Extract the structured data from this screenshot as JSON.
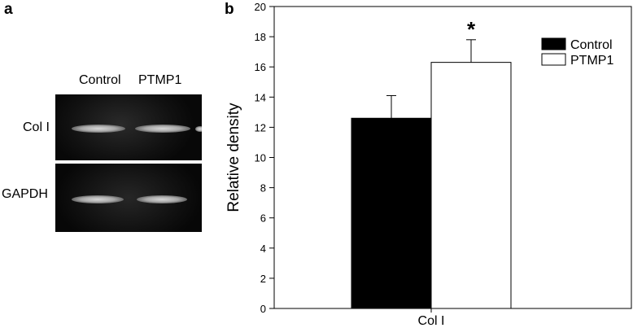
{
  "panel_a": {
    "letter": "a",
    "lanes": [
      "Control",
      "PTMP1"
    ],
    "rows": [
      "Col I",
      "GAPDH"
    ]
  },
  "panel_b": {
    "letter": "b"
  },
  "chart_data": {
    "type": "bar",
    "categories": [
      "Col I"
    ],
    "series": [
      {
        "name": "Control",
        "values": [
          12.6
        ],
        "error": [
          1.5
        ],
        "color": "#000000"
      },
      {
        "name": "PTMP1",
        "values": [
          16.3
        ],
        "error": [
          1.5
        ],
        "color": "#ffffff"
      }
    ],
    "ylabel": "Relative density",
    "xlabel": "",
    "ylim": [
      0,
      20
    ],
    "yticks": [
      0,
      2,
      4,
      6,
      8,
      10,
      12,
      14,
      16,
      18,
      20
    ],
    "annotations": [
      {
        "text": "*",
        "series": "PTMP1",
        "category": "Col I"
      }
    ],
    "legend": {
      "position": "top-right",
      "entries": [
        "Control",
        "PTMP1"
      ]
    },
    "grid": false
  }
}
